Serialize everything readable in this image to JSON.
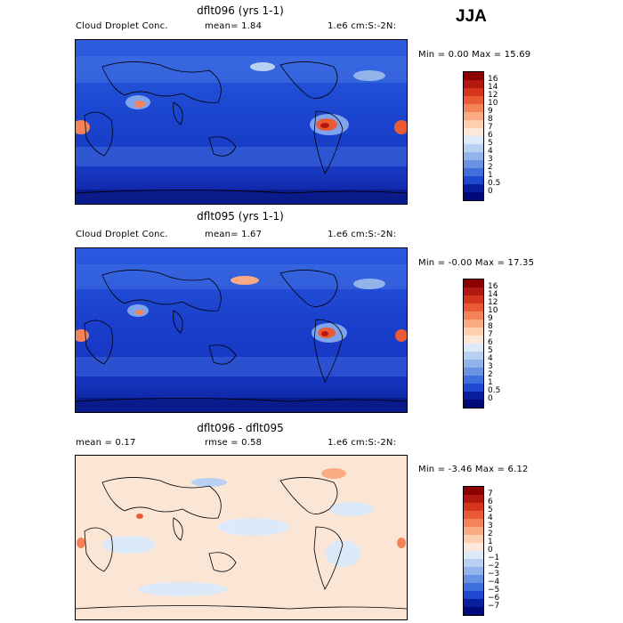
{
  "season": "JJA",
  "panels": [
    {
      "title": "dflt096 (yrs 1-1)",
      "left_label": "Cloud Droplet Conc.",
      "mid_label": "mean=   1.84",
      "right_label": "1.e6 cm:S:-2N:",
      "minmax": "Min =   0.00 Max =  15.69",
      "colorbar": {
        "labels": [
          "16",
          "14",
          "12",
          "10",
          "9",
          "8",
          "7",
          "6",
          "5",
          "4",
          "3",
          "2",
          "1",
          "0.5",
          "0"
        ],
        "colors": [
          "#8b0000",
          "#b2180f",
          "#d6351d",
          "#ea5a34",
          "#f5835a",
          "#fbab84",
          "#fdd0b2",
          "#fbe8d8",
          "#dde8f8",
          "#b9d0f2",
          "#93b4ea",
          "#6a92e2",
          "#3f6fdc",
          "#1f49d0",
          "#0a1f9e",
          "#000a78"
        ]
      }
    },
    {
      "title": "dflt095 (yrs 1-1)",
      "left_label": "Cloud Droplet Conc.",
      "mid_label": "mean=   1.67",
      "right_label": "1.e6 cm:S:-2N:",
      "minmax": "Min =  -0.00 Max =  17.35",
      "colorbar": {
        "labels": [
          "16",
          "14",
          "12",
          "10",
          "9",
          "8",
          "7",
          "6",
          "5",
          "4",
          "3",
          "2",
          "1",
          "0.5",
          "0"
        ],
        "colors": [
          "#8b0000",
          "#b2180f",
          "#d6351d",
          "#ea5a34",
          "#f5835a",
          "#fbab84",
          "#fdd0b2",
          "#fbe8d8",
          "#dde8f8",
          "#b9d0f2",
          "#93b4ea",
          "#6a92e2",
          "#3f6fdc",
          "#1f49d0",
          "#0a1f9e",
          "#000a78"
        ]
      }
    },
    {
      "title": "dflt096 - dflt095",
      "left_label": "mean =   0.17",
      "mid_label": "rmse =   0.58",
      "right_label": "1.e6 cm:S:-2N:",
      "minmax": "Min =  -3.46 Max =   6.12",
      "colorbar": {
        "labels": [
          "7",
          "6",
          "5",
          "4",
          "3",
          "2",
          "1",
          "0",
          "−1",
          "−2",
          "−3",
          "−4",
          "−5",
          "−6",
          "−7"
        ],
        "colors": [
          "#8b0000",
          "#b2180f",
          "#d6351d",
          "#ea5a34",
          "#f5835a",
          "#fbab84",
          "#fdd0b2",
          "#fde9dc",
          "#dce9f8",
          "#b9d0f2",
          "#93b4ea",
          "#6a92e2",
          "#3f6fdc",
          "#1f49d0",
          "#0a1f9e",
          "#000a78"
        ]
      }
    }
  ],
  "colors": {
    "ocean_base_top": "#1e4fd6",
    "ocean_base_mid": "#0a2fb4",
    "diff_base": "#fbe3d3",
    "coastline": "#000000"
  }
}
